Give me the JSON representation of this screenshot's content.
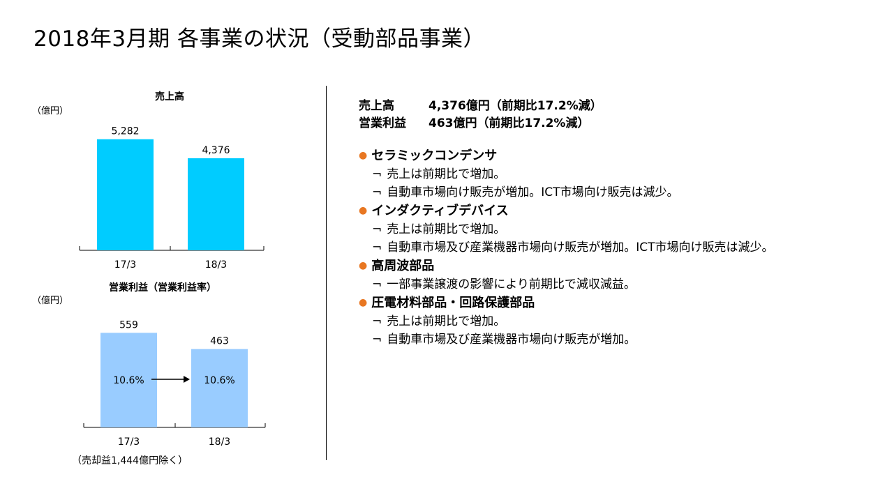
{
  "page": {
    "title": "2018年3月期 各事業の状況（受動部品事業）"
  },
  "charts_text": {
    "sales_unit": "（億円）",
    "profit_unit": "（億円）",
    "profit_note": "（売却益1,444億円除く）"
  },
  "chart_data": [
    {
      "type": "bar",
      "title": "売上高",
      "categories": [
        "17/3",
        "18/3"
      ],
      "values": [
        5282,
        4376
      ],
      "value_labels": [
        "5,282",
        "4,376"
      ],
      "bar_color": "#00ccff",
      "ylim": [
        0,
        6000
      ]
    },
    {
      "type": "bar",
      "title": "営業利益（営業利益率）",
      "categories": [
        "17/3",
        "18/3"
      ],
      "values": [
        559,
        463
      ],
      "value_labels": [
        "559",
        "463"
      ],
      "margin_labels": [
        "10.6%",
        "10.6%"
      ],
      "bar_color": "#99ccff",
      "ylim": [
        0,
        680
      ]
    }
  ],
  "summary": {
    "sales_label": "売上高",
    "sales_value": "4,376億円（前期比17.2%減）",
    "profit_label": "営業利益",
    "profit_value": "463億円（前期比17.2%減）"
  },
  "segments": [
    {
      "name": "セラミックコンデンサ",
      "items": [
        "売上は前期比で増加。",
        "自動車市場向け販売が増加。ICT市場向け販売は減少。"
      ]
    },
    {
      "name": "インダクティブデバイス",
      "items": [
        "売上は前期比で増加。",
        "自動車市場及び産業機器市場向け販売が増加。ICT市場向け販売は減少。"
      ]
    },
    {
      "name": "高周波部品",
      "items": [
        "一部事業譲渡の影響により前期比で減収減益。"
      ]
    },
    {
      "name": "圧電材料部品・回路保護部品",
      "items": [
        "売上は前期比で増加。",
        "自動車市場及び産業機器市場向け販売が増加。"
      ]
    }
  ],
  "glyphs": {
    "bullet": "●",
    "item_mark": "¬"
  },
  "colors": {
    "bullet": "#e87722",
    "sales_bar": "#00ccff",
    "profit_bar": "#99ccff"
  }
}
